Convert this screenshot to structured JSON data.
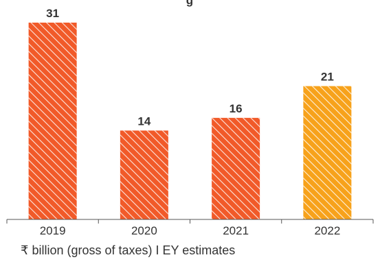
{
  "chart_data": {
    "type": "bar",
    "title": "",
    "title_fragment": "g",
    "categories": [
      "2019",
      "2020",
      "2021",
      "2022"
    ],
    "values": [
      31,
      14,
      16,
      21
    ],
    "value_labels": [
      "31",
      "14",
      "16",
      "21"
    ],
    "ylim": [
      0,
      31
    ],
    "grid": false,
    "bar_colors": [
      "#f15a29",
      "#f15a29",
      "#f15a29",
      "#f7a21b"
    ],
    "hatch": "diagonal",
    "note": "₹ billion (gross of taxes) I EY estimates"
  }
}
